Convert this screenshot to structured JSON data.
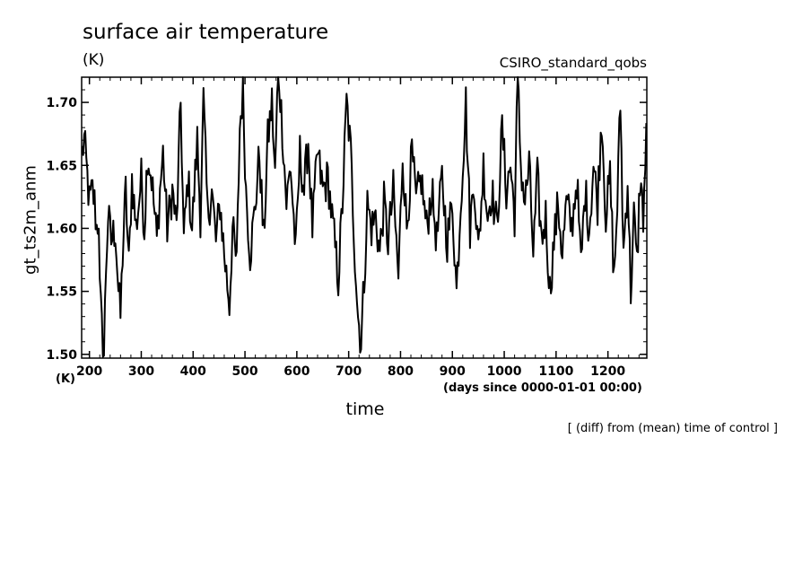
{
  "chart_data": {
    "type": "line",
    "title": "surface air temperature",
    "units": "(K)",
    "experiment": "CSIRO_standard_qobs",
    "xlabel": "time",
    "xunits": "(days since 0000-01-01 00:00)",
    "ylabel": "gt_ts2m_anm",
    "yunits": "(K)",
    "note": "[ (diff) from (mean) time of control ]",
    "xlim": [
      185,
      1275
    ],
    "ylim": [
      1.497,
      1.72
    ],
    "xticks": [
      200,
      300,
      400,
      500,
      600,
      700,
      800,
      900,
      1000,
      1100,
      1200
    ],
    "yticks": [
      1.5,
      1.55,
      1.6,
      1.65,
      1.7
    ],
    "x_start": 186,
    "x_step": 2,
    "line_color": "#000000",
    "keypoints": [
      [
        186,
        1.66
      ],
      [
        190,
        1.67
      ],
      [
        196,
        1.64
      ],
      [
        200,
        1.62
      ],
      [
        206,
        1.63
      ],
      [
        210,
        1.62
      ],
      [
        214,
        1.6
      ],
      [
        218,
        1.61
      ],
      [
        220,
        1.55
      ],
      [
        224,
        1.52
      ],
      [
        228,
        1.5
      ],
      [
        232,
        1.57
      ],
      [
        236,
        1.61
      ],
      [
        242,
        1.59
      ],
      [
        250,
        1.6
      ],
      [
        256,
        1.55
      ],
      [
        260,
        1.53
      ],
      [
        264,
        1.58
      ],
      [
        270,
        1.63
      ],
      [
        276,
        1.57
      ],
      [
        282,
        1.64
      ],
      [
        290,
        1.6
      ],
      [
        300,
        1.64
      ],
      [
        306,
        1.6
      ],
      [
        312,
        1.66
      ],
      [
        320,
        1.64
      ],
      [
        330,
        1.59
      ],
      [
        336,
        1.63
      ],
      [
        342,
        1.66
      ],
      [
        350,
        1.6
      ],
      [
        360,
        1.63
      ],
      [
        368,
        1.6
      ],
      [
        376,
        1.7
      ],
      [
        382,
        1.59
      ],
      [
        390,
        1.64
      ],
      [
        398,
        1.6
      ],
      [
        408,
        1.67
      ],
      [
        414,
        1.61
      ],
      [
        420,
        1.7
      ],
      [
        428,
        1.61
      ],
      [
        436,
        1.63
      ],
      [
        444,
        1.59
      ],
      [
        452,
        1.62
      ],
      [
        460,
        1.58
      ],
      [
        470,
        1.54
      ],
      [
        476,
        1.6
      ],
      [
        484,
        1.57
      ],
      [
        490,
        1.68
      ],
      [
        496,
        1.71
      ],
      [
        502,
        1.63
      ],
      [
        510,
        1.58
      ],
      [
        518,
        1.61
      ],
      [
        528,
        1.66
      ],
      [
        536,
        1.59
      ],
      [
        544,
        1.67
      ],
      [
        552,
        1.7
      ],
      [
        558,
        1.64
      ],
      [
        564,
        1.73
      ],
      [
        572,
        1.68
      ],
      [
        580,
        1.62
      ],
      [
        588,
        1.65
      ],
      [
        598,
        1.58
      ],
      [
        606,
        1.66
      ],
      [
        614,
        1.63
      ],
      [
        622,
        1.67
      ],
      [
        630,
        1.6
      ],
      [
        640,
        1.66
      ],
      [
        650,
        1.63
      ],
      [
        660,
        1.64
      ],
      [
        670,
        1.6
      ],
      [
        680,
        1.56
      ],
      [
        688,
        1.62
      ],
      [
        696,
        1.7
      ],
      [
        704,
        1.66
      ],
      [
        712,
        1.58
      ],
      [
        718,
        1.53
      ],
      [
        724,
        1.51
      ],
      [
        730,
        1.56
      ],
      [
        736,
        1.62
      ],
      [
        744,
        1.6
      ],
      [
        752,
        1.61
      ],
      [
        760,
        1.58
      ],
      [
        768,
        1.62
      ],
      [
        776,
        1.59
      ],
      [
        786,
        1.63
      ],
      [
        796,
        1.56
      ],
      [
        804,
        1.66
      ],
      [
        812,
        1.6
      ],
      [
        822,
        1.66
      ],
      [
        830,
        1.62
      ],
      [
        840,
        1.64
      ],
      [
        850,
        1.6
      ],
      [
        860,
        1.63
      ],
      [
        870,
        1.59
      ],
      [
        880,
        1.64
      ],
      [
        890,
        1.59
      ],
      [
        900,
        1.62
      ],
      [
        908,
        1.55
      ],
      [
        916,
        1.62
      ],
      [
        926,
        1.7
      ],
      [
        934,
        1.6
      ],
      [
        942,
        1.64
      ],
      [
        950,
        1.58
      ],
      [
        960,
        1.65
      ],
      [
        968,
        1.61
      ],
      [
        976,
        1.63
      ],
      [
        986,
        1.6
      ],
      [
        996,
        1.68
      ],
      [
        1004,
        1.63
      ],
      [
        1012,
        1.65
      ],
      [
        1020,
        1.61
      ],
      [
        1026,
        1.72
      ],
      [
        1032,
        1.65
      ],
      [
        1040,
        1.62
      ],
      [
        1048,
        1.65
      ],
      [
        1056,
        1.58
      ],
      [
        1064,
        1.64
      ],
      [
        1072,
        1.59
      ],
      [
        1080,
        1.61
      ],
      [
        1088,
        1.55
      ],
      [
        1096,
        1.59
      ],
      [
        1104,
        1.62
      ],
      [
        1112,
        1.58
      ],
      [
        1120,
        1.62
      ],
      [
        1130,
        1.6
      ],
      [
        1140,
        1.64
      ],
      [
        1148,
        1.57
      ],
      [
        1156,
        1.63
      ],
      [
        1164,
        1.6
      ],
      [
        1172,
        1.65
      ],
      [
        1180,
        1.62
      ],
      [
        1188,
        1.69
      ],
      [
        1196,
        1.61
      ],
      [
        1204,
        1.64
      ],
      [
        1212,
        1.56
      ],
      [
        1218,
        1.62
      ],
      [
        1224,
        1.7
      ],
      [
        1230,
        1.58
      ],
      [
        1238,
        1.64
      ],
      [
        1244,
        1.55
      ],
      [
        1250,
        1.61
      ],
      [
        1256,
        1.57
      ],
      [
        1262,
        1.64
      ],
      [
        1268,
        1.61
      ],
      [
        1274,
        1.67
      ]
    ]
  }
}
